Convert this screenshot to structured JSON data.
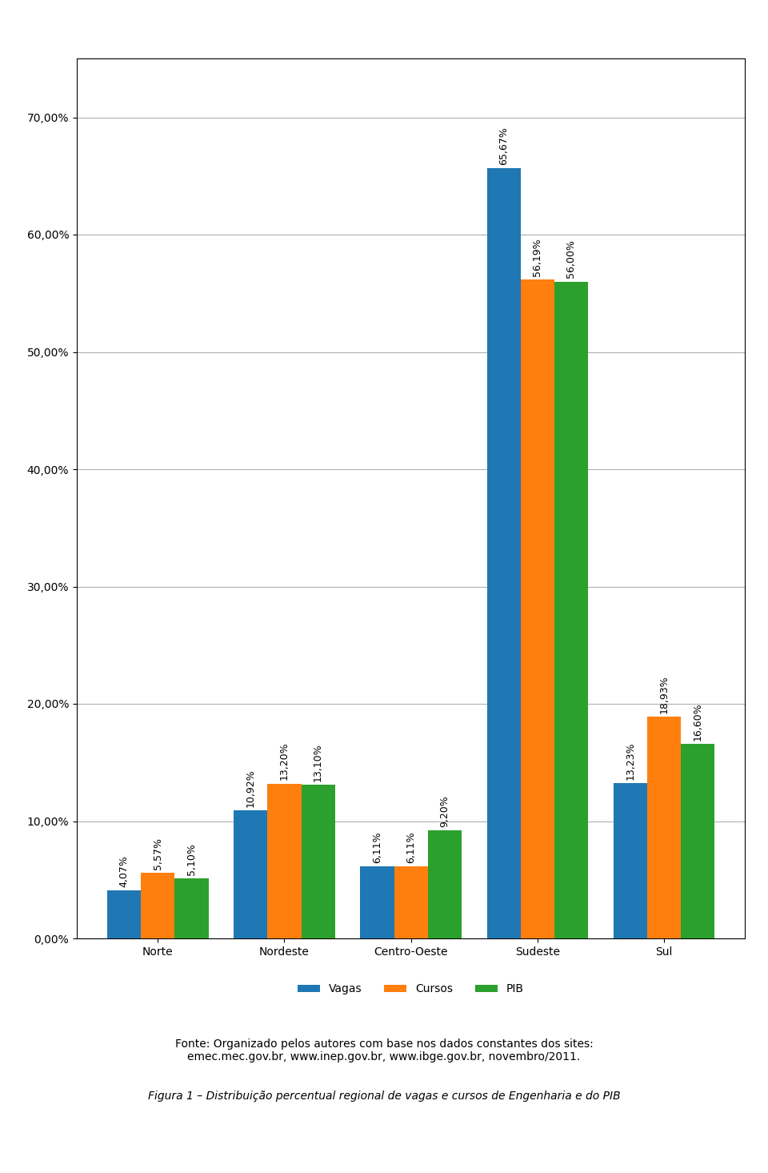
{
  "chart_data": {
    "type": "bar",
    "categories": [
      "Norte",
      "Nordeste",
      "Centro-Oeste",
      "Sudeste",
      "Sul"
    ],
    "series": [
      {
        "name": "Vagas",
        "values": [
          4.07,
          10.92,
          6.11,
          65.67,
          13.23
        ],
        "value_labels": [
          "4,07%",
          "10,92%",
          "6,11%",
          "65,67%",
          "13,23%"
        ]
      },
      {
        "name": "Cursos",
        "values": [
          5.57,
          13.2,
          6.11,
          56.19,
          18.93
        ],
        "value_labels": [
          "5,57%",
          "13,20%",
          "6,11%",
          "56,19%",
          "18,93%"
        ]
      },
      {
        "name": "PIB",
        "values": [
          5.1,
          13.1,
          9.2,
          56.0,
          16.6
        ],
        "value_labels": [
          "5,10%",
          "13,10%",
          "9,20%",
          "56,00%",
          "16,60%"
        ]
      }
    ],
    "ylim": [
      0,
      75
    ],
    "yticks": [
      {
        "value": 0.0,
        "label": "0,00%"
      },
      {
        "value": 10.0,
        "label": "10,00%"
      },
      {
        "value": 20.0,
        "label": "20,00%"
      },
      {
        "value": 30.0,
        "label": "30,00%"
      },
      {
        "value": 40.0,
        "label": "40,00%"
      },
      {
        "value": 50.0,
        "label": "50,00%"
      },
      {
        "value": 60.0,
        "label": "60,00%"
      },
      {
        "value": 70.0,
        "label": "70,00%"
      }
    ],
    "grid": true,
    "legend": "upper center",
    "data_labels": true,
    "annotations": [
      "Fonte: Organizado pelos autores com base nos dados constantes dos sites:\nemec.mec.gov.br, www.inep.gov.br, www.ibge.gov.br, novembro/2011.",
      "Figura 1 – Distribuição percentual regional de vagas e cursos de Engenharia e do PIB"
    ]
  }
}
